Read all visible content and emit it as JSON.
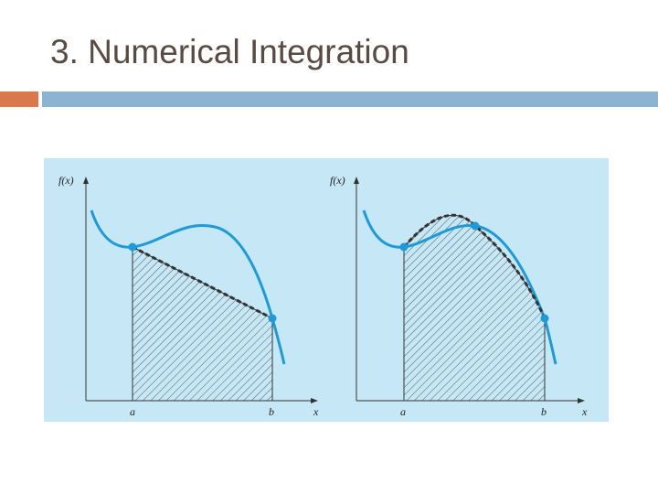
{
  "title": "3. Numerical Integration",
  "panels": [
    {
      "y_label": "f(x)",
      "a_label": "a",
      "b_label": "b",
      "x_label": "x"
    },
    {
      "y_label": "f(x)",
      "a_label": "a",
      "b_label": "b",
      "x_label": "x"
    }
  ]
}
